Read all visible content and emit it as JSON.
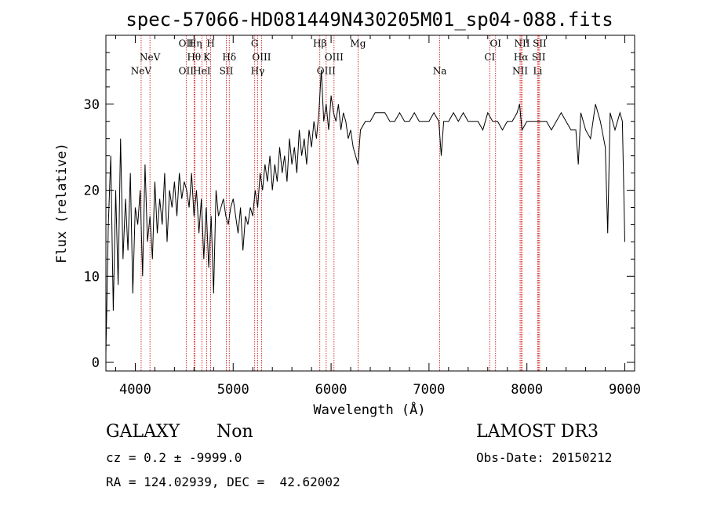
{
  "chart_data": {
    "type": "line",
    "title": "spec-57066-HD081449N430205M01_sp04-088.fits",
    "xlabel": "Wavelength (Å)",
    "ylabel": "Flux (relative)",
    "xlim": [
      3700,
      9100
    ],
    "ylim": [
      -1,
      38
    ],
    "xticks": [
      4000,
      5000,
      6000,
      7000,
      8000,
      9000
    ],
    "yticks": [
      0,
      10,
      20,
      30
    ],
    "colors": {
      "spectrum": "#000000",
      "line_marker": "#cc0000",
      "frame": "#000000"
    },
    "series": [
      {
        "name": "flux",
        "x": [
          3700,
          3725,
          3750,
          3775,
          3800,
          3825,
          3850,
          3875,
          3900,
          3925,
          3950,
          3975,
          4000,
          4025,
          4050,
          4075,
          4100,
          4125,
          4150,
          4175,
          4200,
          4225,
          4250,
          4275,
          4300,
          4325,
          4350,
          4375,
          4400,
          4425,
          4450,
          4475,
          4500,
          4525,
          4550,
          4575,
          4600,
          4625,
          4650,
          4675,
          4700,
          4725,
          4750,
          4775,
          4800,
          4825,
          4850,
          4875,
          4900,
          4925,
          4950,
          4975,
          5000,
          5025,
          5050,
          5075,
          5100,
          5125,
          5150,
          5175,
          5200,
          5225,
          5250,
          5275,
          5300,
          5325,
          5350,
          5375,
          5400,
          5425,
          5450,
          5475,
          5500,
          5525,
          5550,
          5575,
          5600,
          5625,
          5650,
          5675,
          5700,
          5725,
          5750,
          5775,
          5800,
          5825,
          5850,
          5875,
          5900,
          5925,
          5950,
          5975,
          6000,
          6025,
          6050,
          6075,
          6100,
          6125,
          6150,
          6175,
          6200,
          6225,
          6250,
          6275,
          6300,
          6350,
          6400,
          6450,
          6500,
          6550,
          6600,
          6650,
          6700,
          6750,
          6800,
          6850,
          6900,
          6950,
          7000,
          7050,
          7100,
          7125,
          7150,
          7200,
          7250,
          7300,
          7350,
          7400,
          7450,
          7500,
          7550,
          7600,
          7650,
          7700,
          7750,
          7800,
          7850,
          7900,
          7925,
          7950,
          8000,
          8050,
          8100,
          8150,
          8200,
          8250,
          8300,
          8350,
          8400,
          8450,
          8500,
          8525,
          8550,
          8600,
          8650,
          8700,
          8750,
          8800,
          8825,
          8850,
          8900,
          8950,
          8975,
          9000
        ],
        "y": [
          1,
          16,
          24,
          6,
          20,
          9,
          26,
          12,
          19,
          13,
          22,
          8,
          18,
          16,
          20,
          10,
          23,
          14,
          17,
          12,
          21,
          15,
          19,
          16,
          22,
          14,
          20,
          18,
          21,
          17,
          22,
          19,
          21,
          20,
          18,
          22,
          17,
          20,
          15,
          19,
          12,
          18,
          11,
          17,
          8,
          20,
          17,
          18,
          19,
          17,
          16,
          18,
          19,
          17,
          15,
          18,
          13,
          17,
          16,
          18,
          17,
          20,
          18,
          22,
          20,
          23,
          21,
          24,
          20,
          23,
          21,
          25,
          22,
          24,
          21,
          26,
          23,
          25,
          22,
          27,
          24,
          26,
          23,
          27,
          25,
          28,
          26,
          29,
          34,
          28,
          30,
          27,
          31,
          29,
          28,
          30,
          27,
          29,
          28,
          26,
          27,
          25,
          24,
          23,
          27,
          28,
          28,
          29,
          29,
          29,
          28,
          28,
          29,
          28,
          28,
          29,
          28,
          28,
          28,
          29,
          28,
          24,
          28,
          28,
          29,
          28,
          29,
          28,
          28,
          28,
          27,
          29,
          28,
          28,
          27,
          28,
          28,
          29,
          30,
          27,
          28,
          28,
          28,
          28,
          28,
          27,
          28,
          29,
          28,
          27,
          27,
          23,
          29,
          27,
          26,
          30,
          28,
          25,
          15,
          29,
          27,
          29,
          28,
          14
        ]
      }
    ],
    "spectral_lines": [
      {
        "label": "NeV",
        "wavelength": 4060,
        "row": 3
      },
      {
        "label": "NeV",
        "wavelength": 4150,
        "row": 2
      },
      {
        "label": "OII",
        "wavelength": 4520,
        "row": 1
      },
      {
        "label": "OII",
        "wavelength": 4520,
        "row": 3
      },
      {
        "label": "Hη",
        "wavelength": 4610,
        "row": 1
      },
      {
        "label": "Hθ",
        "wavelength": 4600,
        "row": 2
      },
      {
        "label": "HeI",
        "wavelength": 4680,
        "row": 3
      },
      {
        "label": "H",
        "wavelength": 4770,
        "row": 1
      },
      {
        "label": "K",
        "wavelength": 4730,
        "row": 2
      },
      {
        "label": "SII",
        "wavelength": 4930,
        "row": 3
      },
      {
        "label": "Hδ",
        "wavelength": 4960,
        "row": 2
      },
      {
        "label": "G",
        "wavelength": 5220,
        "row": 1
      },
      {
        "label": "OIII",
        "wavelength": 5290,
        "row": 2
      },
      {
        "label": "Hγ",
        "wavelength": 5250,
        "row": 3
      },
      {
        "label": "Hβ",
        "wavelength": 5885,
        "row": 1
      },
      {
        "label": "OIII",
        "wavelength": 5950,
        "row": 3
      },
      {
        "label": "OIII",
        "wavelength": 6030,
        "row": 2
      },
      {
        "label": "Mg",
        "wavelength": 6275,
        "row": 1
      },
      {
        "label": "Na",
        "wavelength": 7110,
        "row": 3
      },
      {
        "label": "OI",
        "wavelength": 7680,
        "row": 1
      },
      {
        "label": "CI",
        "wavelength": 7620,
        "row": 2
      },
      {
        "label": "NII",
        "wavelength": 7950,
        "row": 1
      },
      {
        "label": "Hα",
        "wavelength": 7940,
        "row": 2
      },
      {
        "label": "NII",
        "wavelength": 7930,
        "row": 3
      },
      {
        "label": "SII",
        "wavelength": 8130,
        "row": 1
      },
      {
        "label": "SII",
        "wavelength": 8120,
        "row": 2
      },
      {
        "label": "Li",
        "wavelength": 8110,
        "row": 3
      }
    ]
  },
  "info": {
    "object_class": "GALAXY",
    "subclass": "Non",
    "survey": "LAMOST DR3",
    "cz": "cz = 0.2 ± -9999.0",
    "obs_date": "Obs-Date: 20150212",
    "coords": "RA = 124.02939, DEC =  42.62002"
  }
}
